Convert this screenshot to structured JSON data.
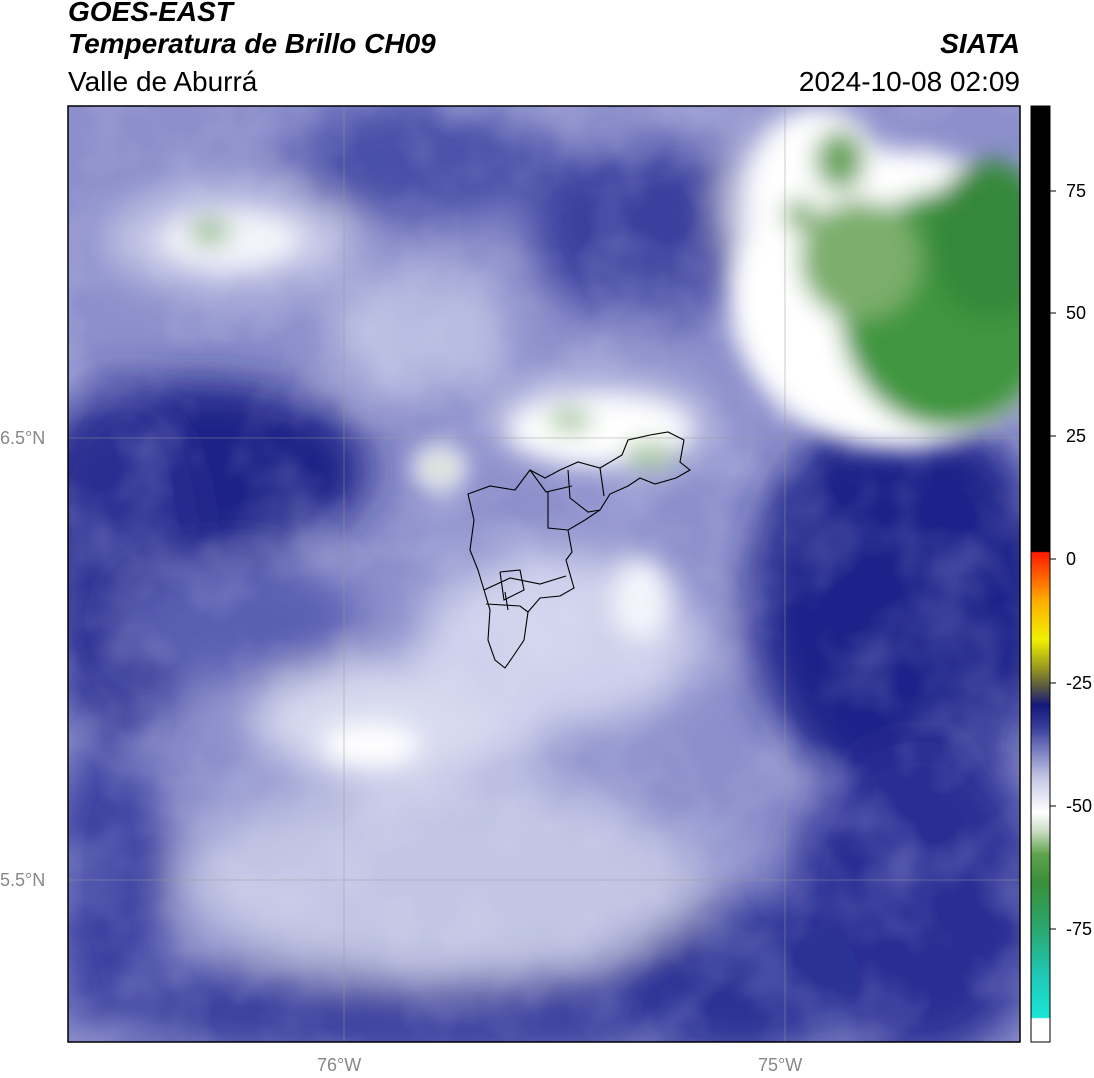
{
  "header": {
    "satellite": "GOES-EAST",
    "product": "Temperatura de Brillo CH09",
    "region": "Valle de Aburrá",
    "agency": "SIATA",
    "datetime": "2024-10-08 02:09"
  },
  "map": {
    "lat_labels": [
      "6.5°N",
      "5.5°N"
    ],
    "lon_labels": [
      "76°W",
      "75°W"
    ]
  },
  "colorbar": {
    "ticks": [
      "75",
      "50",
      "25",
      "0",
      "-25",
      "-50",
      "-75"
    ],
    "colors": {
      "cold_green": "#3a8f3a",
      "mid_white": "#ffffff",
      "warm_navy": "#1a1f80",
      "hot_black": "#000000",
      "cyan_low": "#19e6d6"
    }
  }
}
